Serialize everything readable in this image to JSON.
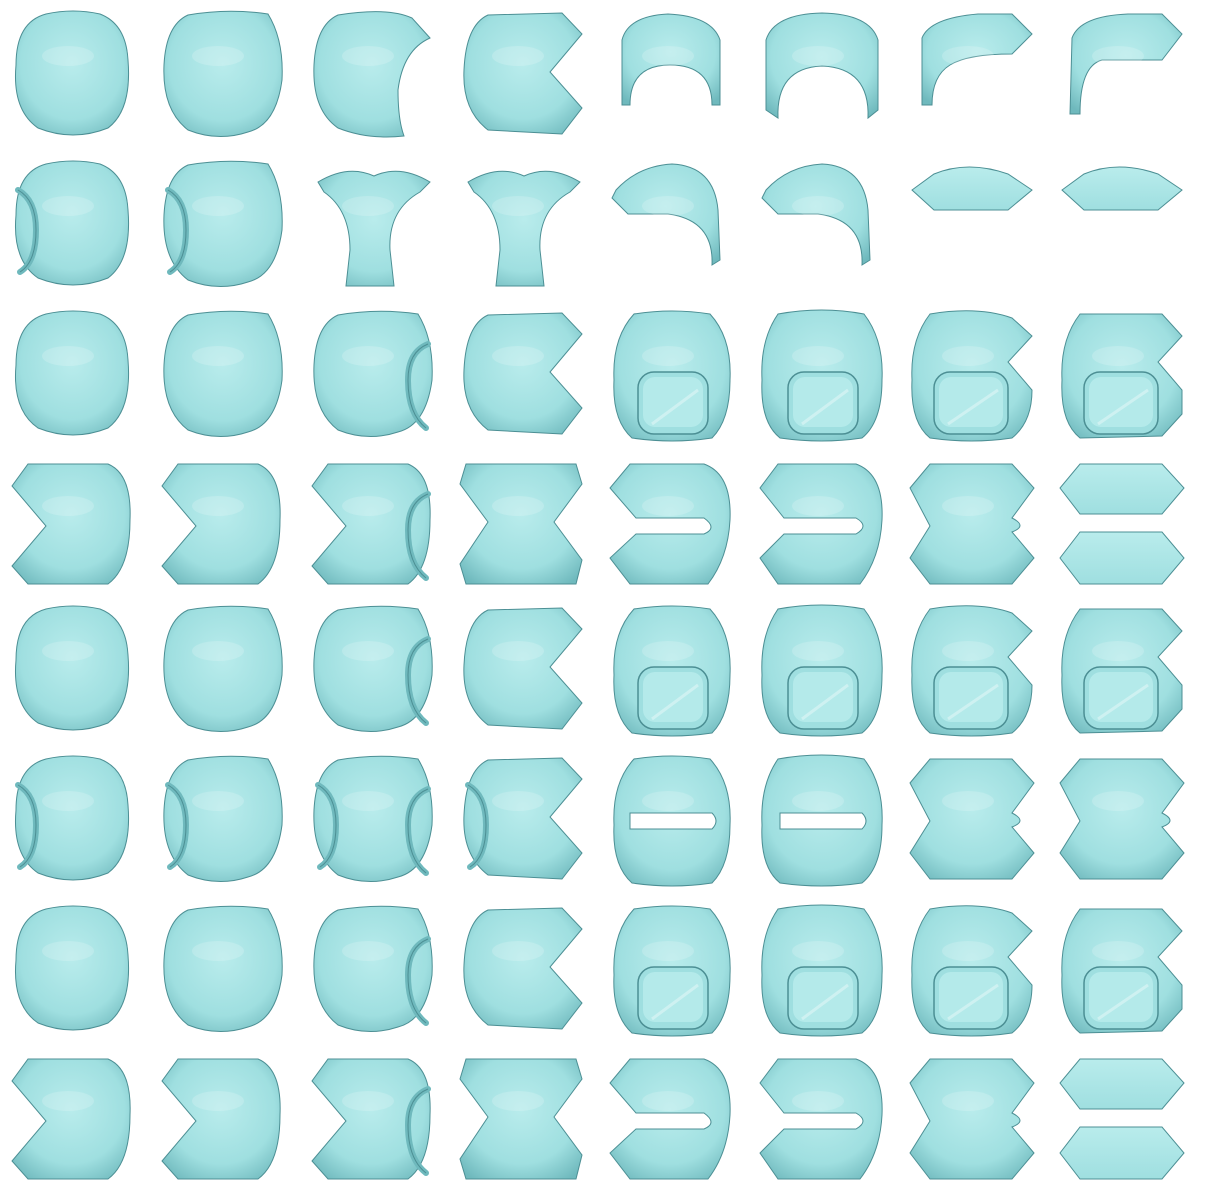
{
  "figure": {
    "rows": 8,
    "columns": 8,
    "colors": {
      "background": "#ffffff",
      "surface_light": "#b9ecec",
      "surface_mid": "#9fdfe0",
      "surface_dark": "#6fb9bd",
      "edge": "#4c8f94"
    },
    "tiles": [
      [
        "sphere",
        "sphere-wide",
        "sphere-cut-right",
        "sphere-notch-right",
        "cap-arch",
        "cap-arch-wide",
        "cap-hook",
        "cap-hook-flat"
      ],
      [
        "sphere-hole-left",
        "sphere-hole-left-wide",
        "saddle-tube",
        "saddle-tube",
        "cap-dome-left",
        "cap-dome-left",
        "flat-hexagon",
        "flat-hexagon"
      ],
      [
        "sphere",
        "sphere-wide",
        "sphere-hole-right",
        "sphere-notch-right",
        "ring-hole",
        "ring-hole-wide",
        "ring-hole-notch",
        "ring-hole-double-notch"
      ],
      [
        "sphere-notch-left",
        "sphere-notch-left",
        "saddle-hole-right",
        "saddle-double-notch",
        "s-fold",
        "s-fold-wide",
        "double-hexagon-fold",
        "double-hexagon"
      ],
      [
        "sphere",
        "sphere-wide",
        "sphere-hole-right",
        "sphere-notch-right",
        "ring-hole",
        "ring-hole-wide",
        "ring-hole-notch",
        "ring-hole-double-notch"
      ],
      [
        "sphere-hole-left",
        "sphere-hole-left-wide",
        "saddle-hole-both",
        "saddle-hole-notch",
        "ring-fold",
        "ring-fold-wide",
        "double-hexagon-fold",
        "double-hexagon-fold"
      ],
      [
        "sphere",
        "sphere-wide",
        "sphere-hole-right",
        "sphere-notch-right",
        "ring-hole",
        "ring-hole-wide",
        "ring-hole-notch",
        "ring-hole-double-notch"
      ],
      [
        "sphere-notch-left",
        "sphere-notch-left",
        "saddle-hole-right",
        "saddle-double-notch",
        "s-fold",
        "s-fold-wide",
        "double-hexagon-fold",
        "double-hexagon-split"
      ]
    ]
  }
}
